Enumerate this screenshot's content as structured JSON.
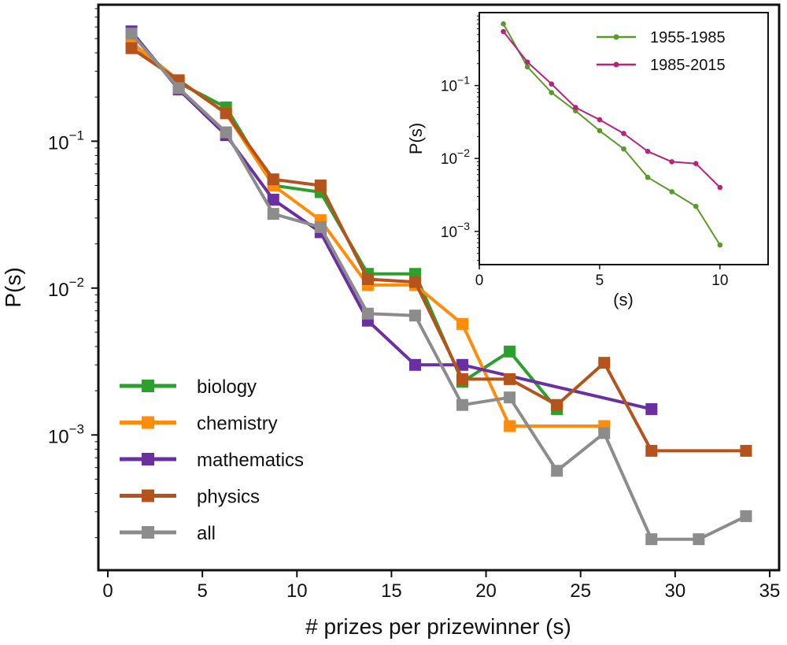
{
  "chart_data": [
    {
      "type": "line",
      "xlabel": "# prizes per prizewinner (s)",
      "ylabel": "P(s)",
      "xlim": [
        -0.5,
        35.5
      ],
      "ylim": [
        0.00012,
        0.85
      ],
      "yscale": "log",
      "x_ticks": [
        0,
        5,
        10,
        15,
        20,
        25,
        30,
        35
      ],
      "y_ticks": [
        {
          "value": 0.1,
          "base": "10",
          "exp": "−1"
        },
        {
          "value": 0.01,
          "base": "10",
          "exp": "−2"
        },
        {
          "value": 0.001,
          "base": "10",
          "exp": "−3"
        }
      ],
      "grid": false,
      "legend_position": "bottom-left",
      "marker": "square",
      "series": [
        {
          "name": "biology",
          "color": "#2ca02c",
          "x": [
            1.25,
            3.75,
            6.25,
            8.75,
            11.25,
            13.75,
            16.25,
            18.75,
            21.25,
            23.75
          ],
          "y": [
            0.47,
            0.25,
            0.17,
            0.05,
            0.045,
            0.0125,
            0.0125,
            0.0023,
            0.0037,
            0.0015
          ]
        },
        {
          "name": "chemistry",
          "color": "#ff8c0a",
          "x": [
            1.25,
            3.75,
            6.25,
            8.75,
            11.25,
            13.75,
            16.25,
            18.75,
            21.25,
            26.25
          ],
          "y": [
            0.47,
            0.26,
            0.155,
            0.05,
            0.029,
            0.0105,
            0.0105,
            0.0057,
            0.00115,
            0.00115
          ]
        },
        {
          "name": "mathematics",
          "color": "#6a2fa0",
          "x": [
            1.25,
            3.75,
            6.25,
            8.75,
            11.25,
            13.75,
            16.25,
            18.75,
            28.75
          ],
          "y": [
            0.56,
            0.225,
            0.11,
            0.04,
            0.024,
            0.006,
            0.003,
            0.003,
            0.0015
          ]
        },
        {
          "name": "physics",
          "color": "#b5531c",
          "x": [
            1.25,
            3.75,
            6.25,
            8.75,
            11.25,
            13.75,
            16.25,
            18.75,
            21.25,
            23.75,
            26.25,
            28.75,
            33.75
          ],
          "y": [
            0.43,
            0.26,
            0.155,
            0.055,
            0.05,
            0.0115,
            0.011,
            0.0024,
            0.0024,
            0.0016,
            0.0031,
            0.00078,
            0.00078
          ]
        },
        {
          "name": "all",
          "color": "#8c8c8c",
          "x": [
            1.25,
            3.75,
            6.25,
            8.75,
            11.25,
            13.75,
            16.25,
            18.75,
            21.25,
            23.75,
            26.25,
            28.75,
            31.25,
            33.75
          ],
          "y": [
            0.54,
            0.23,
            0.115,
            0.032,
            0.026,
            0.0067,
            0.0065,
            0.0016,
            0.0018,
            0.00057,
            0.00103,
            0.000195,
            0.000195,
            0.00028
          ]
        }
      ]
    },
    {
      "type": "line",
      "xlabel": "(s)",
      "ylabel": "P(s)",
      "xlim": [
        0,
        12
      ],
      "ylim": [
        0.00035,
        1.0
      ],
      "yscale": "log",
      "x_ticks": [
        0,
        5,
        10
      ],
      "y_ticks": [
        {
          "value": 0.1,
          "base": "10",
          "exp": "−1"
        },
        {
          "value": 0.01,
          "base": "10",
          "exp": "−2"
        },
        {
          "value": 0.001,
          "base": "10",
          "exp": "−3"
        }
      ],
      "grid": false,
      "legend_position": "top-right",
      "marker": "dot",
      "series": [
        {
          "name": "1955-1985",
          "color": "#5b9a28",
          "x": [
            1,
            2,
            3,
            4,
            5,
            6,
            7,
            8,
            9,
            10
          ],
          "y": [
            0.7,
            0.18,
            0.08,
            0.045,
            0.024,
            0.0135,
            0.0055,
            0.0035,
            0.0022,
            0.00065
          ]
        },
        {
          "name": "1985-2015",
          "color": "#b8237d",
          "x": [
            1,
            2,
            3,
            4,
            5,
            6,
            7,
            8,
            9,
            10
          ],
          "y": [
            0.55,
            0.21,
            0.105,
            0.05,
            0.034,
            0.022,
            0.0125,
            0.009,
            0.0085,
            0.004
          ]
        }
      ]
    }
  ]
}
